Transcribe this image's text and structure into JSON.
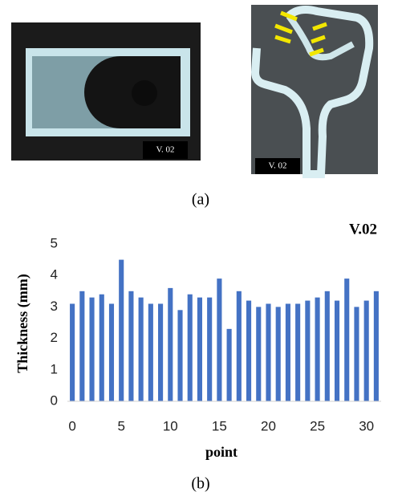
{
  "panel_a": {
    "label": "(a)",
    "image_labels": [
      "V. 02",
      "V. 02"
    ]
  },
  "panel_b": {
    "label": "(b)"
  },
  "chart_data": {
    "type": "bar",
    "title": "V.02",
    "x_label": "point",
    "y_label": "Thickness (mm)",
    "x": [
      0,
      1,
      2,
      3,
      4,
      5,
      6,
      7,
      8,
      9,
      10,
      11,
      12,
      13,
      14,
      15,
      16,
      17,
      18,
      19,
      20,
      21,
      22,
      23,
      24,
      25,
      26,
      27,
      28,
      29,
      30,
      31
    ],
    "values": [
      3.1,
      3.5,
      3.3,
      3.4,
      3.1,
      4.5,
      3.5,
      3.3,
      3.1,
      3.1,
      3.6,
      2.9,
      3.4,
      3.3,
      3.3,
      3.9,
      2.3,
      3.5,
      3.2,
      3.0,
      3.1,
      3.0,
      3.1,
      3.1,
      3.2,
      3.3,
      3.5,
      3.2,
      3.9,
      3.0,
      3.2,
      3.5
    ],
    "color": "#4472c4",
    "xlim": [
      -0.5,
      31.5
    ],
    "xticks": [
      0,
      5,
      10,
      15,
      20,
      25,
      30
    ],
    "ylim": [
      0,
      5
    ],
    "yticks": [
      0,
      1,
      2,
      3,
      4,
      5
    ],
    "grid": false
  }
}
